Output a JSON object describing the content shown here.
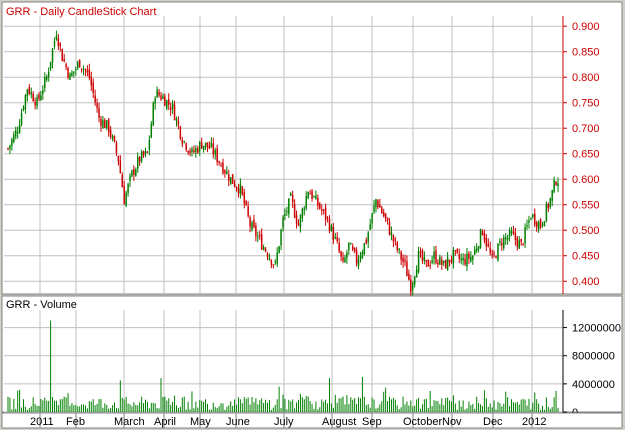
{
  "price_panel": {
    "title": "GRR - Daily CandleStick Chart"
  },
  "volume_panel": {
    "title": "GRR - Volume"
  },
  "colors": {
    "up": "#008000",
    "down": "#cc0000",
    "volume": "#008000",
    "price_axis_text": "#cc0000",
    "grid": "#c0c0c0",
    "panel_bg": "#ffffff"
  },
  "chart_data": [
    {
      "type": "candlestick",
      "title": "GRR - Daily CandleStick Chart",
      "y_ticks": [
        "0.900",
        "0.850",
        "0.800",
        "0.750",
        "0.700",
        "0.650",
        "0.600",
        "0.550",
        "0.500",
        "0.450",
        "0.400"
      ],
      "ylim": [
        0.375,
        0.92
      ],
      "grid": true,
      "x_labels": [
        "2011",
        "Feb",
        "March",
        "April",
        "May",
        "June",
        "July",
        "August",
        "Sep",
        "October",
        "Nov",
        "Dec",
        "2012"
      ],
      "close_anchors": [
        {
          "d": 0,
          "c": 0.66
        },
        {
          "d": 5,
          "c": 0.7
        },
        {
          "d": 10,
          "c": 0.78
        },
        {
          "d": 15,
          "c": 0.75
        },
        {
          "d": 20,
          "c": 0.8
        },
        {
          "d": 25,
          "c": 0.89
        },
        {
          "d": 28,
          "c": 0.84
        },
        {
          "d": 32,
          "c": 0.8
        },
        {
          "d": 37,
          "c": 0.83
        },
        {
          "d": 42,
          "c": 0.8
        },
        {
          "d": 47,
          "c": 0.72
        },
        {
          "d": 52,
          "c": 0.7
        },
        {
          "d": 57,
          "c": 0.64
        },
        {
          "d": 60,
          "c": 0.56
        },
        {
          "d": 64,
          "c": 0.61
        },
        {
          "d": 68,
          "c": 0.64
        },
        {
          "d": 72,
          "c": 0.65
        },
        {
          "d": 76,
          "c": 0.77
        },
        {
          "d": 80,
          "c": 0.76
        },
        {
          "d": 85,
          "c": 0.74
        },
        {
          "d": 90,
          "c": 0.68
        },
        {
          "d": 95,
          "c": 0.65
        },
        {
          "d": 100,
          "c": 0.67
        },
        {
          "d": 105,
          "c": 0.66
        },
        {
          "d": 110,
          "c": 0.63
        },
        {
          "d": 115,
          "c": 0.6
        },
        {
          "d": 120,
          "c": 0.58
        },
        {
          "d": 125,
          "c": 0.51
        },
        {
          "d": 130,
          "c": 0.48
        },
        {
          "d": 135,
          "c": 0.45
        },
        {
          "d": 138,
          "c": 0.43
        },
        {
          "d": 142,
          "c": 0.52
        },
        {
          "d": 146,
          "c": 0.56
        },
        {
          "d": 150,
          "c": 0.51
        },
        {
          "d": 155,
          "c": 0.58
        },
        {
          "d": 160,
          "c": 0.55
        },
        {
          "d": 165,
          "c": 0.52
        },
        {
          "d": 170,
          "c": 0.47
        },
        {
          "d": 173,
          "c": 0.43
        },
        {
          "d": 176,
          "c": 0.47
        },
        {
          "d": 180,
          "c": 0.44
        },
        {
          "d": 185,
          "c": 0.48
        },
        {
          "d": 190,
          "c": 0.56
        },
        {
          "d": 195,
          "c": 0.52
        },
        {
          "d": 200,
          "c": 0.47
        },
        {
          "d": 205,
          "c": 0.43
        },
        {
          "d": 208,
          "c": 0.39
        },
        {
          "d": 212,
          "c": 0.45
        },
        {
          "d": 216,
          "c": 0.43
        },
        {
          "d": 220,
          "c": 0.45
        },
        {
          "d": 225,
          "c": 0.43
        },
        {
          "d": 230,
          "c": 0.45
        },
        {
          "d": 235,
          "c": 0.44
        },
        {
          "d": 240,
          "c": 0.45
        },
        {
          "d": 245,
          "c": 0.5
        },
        {
          "d": 250,
          "c": 0.44
        },
        {
          "d": 255,
          "c": 0.48
        },
        {
          "d": 260,
          "c": 0.49
        },
        {
          "d": 265,
          "c": 0.47
        },
        {
          "d": 270,
          "c": 0.53
        },
        {
          "d": 275,
          "c": 0.51
        },
        {
          "d": 280,
          "c": 0.56
        },
        {
          "d": 283,
          "c": 0.6
        }
      ]
    },
    {
      "type": "bar",
      "title": "GRR - Volume",
      "y_ticks": [
        "12000000",
        "8000000",
        "4000000",
        "0"
      ],
      "ylim": [
        0,
        14500000
      ],
      "x_labels": [
        "2011",
        "Feb",
        "March",
        "April",
        "May",
        "June",
        "July",
        "August",
        "Sep",
        "October",
        "Nov",
        "Dec",
        "2012"
      ],
      "spikes": [
        {
          "d": 22,
          "v": 13000000
        },
        {
          "d": 58,
          "v": 4500000
        },
        {
          "d": 79,
          "v": 4800000
        },
        {
          "d": 166,
          "v": 4800000
        },
        {
          "d": 183,
          "v": 5000000
        },
        {
          "d": 140,
          "v": 3600000
        },
        {
          "d": 257,
          "v": 2900000
        },
        {
          "d": 283,
          "v": 3000000
        }
      ]
    }
  ]
}
